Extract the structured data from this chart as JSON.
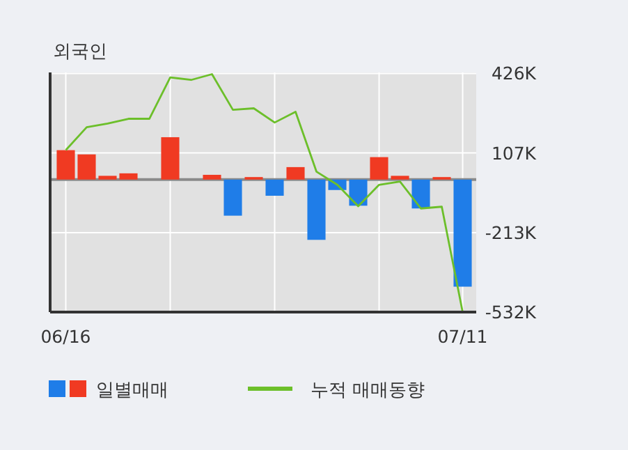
{
  "chart_data": {
    "type": "bar",
    "title": "외국인",
    "categories": [
      "06/16",
      null,
      null,
      null,
      null,
      null,
      null,
      null,
      null,
      null,
      null,
      null,
      null,
      null,
      null,
      null,
      null,
      null,
      null,
      "07/11"
    ],
    "series": [
      {
        "name": "일별매매",
        "colors": [
          "#f03a22",
          "#f03a22",
          "#f03a22",
          "#f03a22",
          "#f03a22",
          "#f03a22",
          "#f03a22",
          "#f03a22",
          "#1f7de8",
          "#f03a22",
          "#1f7de8",
          "#f03a22",
          "#1f7de8",
          "#1f7de8",
          "#1f7de8",
          "#f03a22",
          "#f03a22",
          "#1f7de8",
          "#f03a22",
          "#1f7de8"
        ],
        "values": [
          118,
          101,
          15,
          25,
          0,
          170,
          0,
          19,
          -145,
          10,
          -65,
          50,
          -242,
          -42,
          -105,
          90,
          15,
          -116,
          10,
          -430
        ]
      },
      {
        "name": "누적 매매동향",
        "type": "line",
        "color": "#6cbf2a",
        "values": [
          118,
          210,
          225,
          244,
          244,
          410,
          400,
          423,
          280,
          286,
          229,
          272,
          32,
          -21,
          -107,
          -21,
          -8,
          -116,
          -109,
          -532
        ]
      }
    ],
    "ylim": [
      -532,
      430
    ],
    "yticks": [
      {
        "value": 426,
        "label": "426K"
      },
      {
        "value": 107,
        "label": "107K"
      },
      {
        "value": -213,
        "label": "-213K"
      },
      {
        "value": -532,
        "label": "-532K"
      }
    ],
    "grid": true,
    "legend": "bottom",
    "marker": "none",
    "line_style": "solid"
  }
}
